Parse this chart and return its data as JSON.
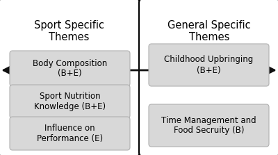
{
  "background_color": "#ffffff",
  "outer_box_color": "#ffffff",
  "outer_box_edge": "#000000",
  "inner_box_color": "#d8d8d8",
  "inner_box_edge": "#b0b0b0",
  "left_title": "Sport Specific\nThemes",
  "right_title": "General Specific\nThemes",
  "left_items": [
    "Body Composition\n(B+E)",
    "Sport Nutrition\nKnowledge (B+E)",
    "Influence on\nPerformance (E)"
  ],
  "right_items": [
    "Childhood Upbringing\n(B+E)",
    "Time Management and\nFood Secruity (B)"
  ],
  "title_fontsize": 10.5,
  "item_fontsize": 8.5,
  "arrow_color": "#111111",
  "outer_lw": 1.5,
  "inner_lw": 0.8
}
